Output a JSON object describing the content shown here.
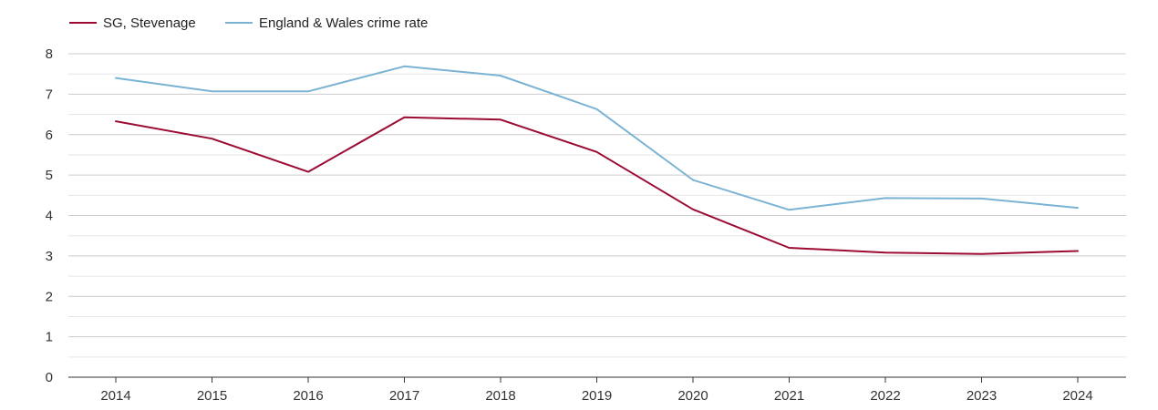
{
  "chart_data": {
    "type": "line",
    "title": "",
    "xlabel": "",
    "ylabel": "",
    "x": [
      "2014",
      "2015",
      "2016",
      "2017",
      "2018",
      "2019",
      "2020",
      "2021",
      "2022",
      "2023",
      "2024"
    ],
    "ylim": [
      0,
      8
    ],
    "yticks": [
      "0",
      "1",
      "2",
      "3",
      "4",
      "5",
      "6",
      "7",
      "8"
    ],
    "grid": true,
    "legend_position": "top-left",
    "series": [
      {
        "name": "SG, Stevenage",
        "color": "#9b0b32",
        "values": [
          6.33,
          5.9,
          5.08,
          6.43,
          6.37,
          5.57,
          4.15,
          3.2,
          3.08,
          3.05,
          3.12
        ]
      },
      {
        "name": "England & Wales crime rate",
        "color": "#7ab3d3",
        "values": [
          7.4,
          7.07,
          7.07,
          7.69,
          7.46,
          6.63,
          4.88,
          4.14,
          4.43,
          4.42,
          4.19
        ]
      }
    ]
  }
}
